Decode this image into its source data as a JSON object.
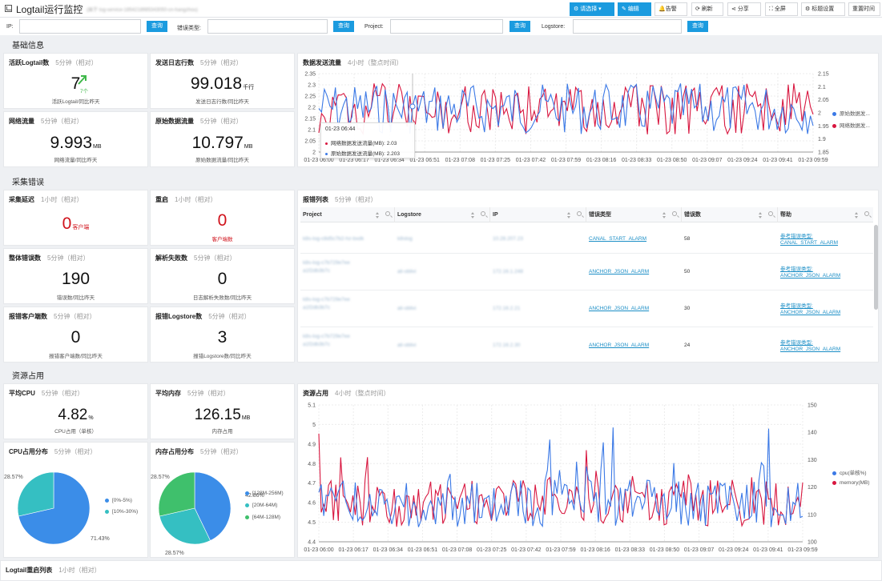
{
  "header": {
    "title": "Logtail运行监控",
    "subtitle": "(属于 log-service-1854218985343050-cn-hangzhou)",
    "buttons": [
      "请选择",
      "编辑",
      "告警",
      "刷新",
      "分享",
      "全屏",
      "标题设置",
      "重置时间"
    ]
  },
  "filters": {
    "labels": [
      "IP:",
      "错误类型:",
      "Project:",
      "Logstore:"
    ],
    "button": "查询"
  },
  "sections": [
    "基础信息",
    "采集错误",
    "资源占用"
  ],
  "cards": {
    "active": {
      "title": "活跃Logtail数",
      "meta": "5分钟（相对）",
      "value": "7",
      "trend": "7个",
      "caption": "活跃Logtail/同比昨天"
    },
    "lines": {
      "title": "发送日志行数",
      "meta": "5分钟（相对）",
      "value": "99.018",
      "unit": "千行",
      "caption": "发送日志行数/同比昨天"
    },
    "net": {
      "title": "网络流量",
      "meta": "5分钟（相对）",
      "value": "9.993",
      "unit": "MB",
      "caption": "网络流量/同比昨天"
    },
    "raw": {
      "title": "原始数据流量",
      "meta": "5分钟（相对）",
      "value": "10.797",
      "unit": "MB",
      "caption": "原始数据流量/同比昨天"
    },
    "delay": {
      "title": "采集延迟",
      "meta": "1小时（相对）",
      "value": "0",
      "unit": "客户端"
    },
    "restart": {
      "title": "重启",
      "meta": "1小时（相对）",
      "value": "0",
      "caption": "客户端数"
    },
    "errors": {
      "title": "整体错误数",
      "meta": "5分钟（相对）",
      "value": "190",
      "caption": "错误数/同比昨天"
    },
    "parse": {
      "title": "解析失败数",
      "meta": "5分钟（相对）",
      "value": "0",
      "caption": "日志解析失败数/同比昨天"
    },
    "errclients": {
      "title": "报错客户端数",
      "meta": "5分钟（相对）",
      "value": "0",
      "caption": "报错客户端数/同比昨天"
    },
    "errlogstore": {
      "title": "报错Logstore数",
      "meta": "5分钟（相对）",
      "value": "3",
      "caption": "报错Logstore数/同比昨天"
    },
    "cpu": {
      "title": "平均CPU",
      "meta": "5分钟（相对）",
      "value": "4.82",
      "unit": "%",
      "caption": "CPU占用（单核）"
    },
    "mem": {
      "title": "平均内存",
      "meta": "5分钟（相对）",
      "value": "126.15",
      "unit": "MB",
      "caption": "内存占用"
    },
    "restartlist": {
      "title": "Logtail重启列表",
      "meta": "1小时（相对）"
    }
  },
  "errtable": {
    "title": "报错列表",
    "meta": "5分钟（相对）",
    "columns": [
      "Project",
      "Logstore",
      "IP",
      "错误类型",
      "错误数",
      "帮助"
    ],
    "rows": [
      {
        "project": "k8s-log-c8d5c7b2-hz-bxdk",
        "logstore": "k8slog",
        "ip": "10.28.207.23",
        "type": "CANAL_START_ALARM",
        "count": "58",
        "help1": "参考错误类型:",
        "help2": "CANAL_START_ALARM"
      },
      {
        "project": "k8s-log-c7b729e7ee",
        "project2": "a1f2db3b7c",
        "logstore": "ali-oblivi",
        "ip": "172.16.1.248",
        "type": "ANCHOR_JSON_ALARM",
        "count": "50",
        "help1": "参考错误类型:",
        "help2": "ANCHOR_JSON_ALARM"
      },
      {
        "project": "k8s-log-c7b729e7ee",
        "project2": "a1f2db3b7c",
        "logstore": "ali-oblivi",
        "ip": "172.16.2.21",
        "type": "ANCHOR_JSON_ALARM",
        "count": "30",
        "help1": "参考错误类型:",
        "help2": "ANCHOR_JSON_ALARM"
      },
      {
        "project": "k8s-log-c7b729e7ee",
        "project2": "a1f2db3b7c",
        "logstore": "ali-oblivi",
        "ip": "172.16.2.30",
        "type": "ANCHOR_JSON_ALARM",
        "count": "24",
        "help1": "参考错误类型:",
        "help2": "ANCHOR_JSON_ALARM"
      }
    ]
  },
  "colors": {
    "blue": "#3b79e6",
    "red": "#d8163f",
    "teal": "#35bfc2",
    "green": "#3fc06c",
    "accent": "#1b9bdf"
  },
  "chart_data": [
    {
      "type": "line",
      "title": "数据发送流量",
      "meta": "4小时（整点时间）",
      "x": [
        "01-23 06:00",
        "01-23 06:17",
        "01-23 06:34",
        "01-23 06:51",
        "01-23 07:08",
        "01-23 07:25",
        "01-23 07:42",
        "01-23 07:59",
        "01-23 08:16",
        "01-23 08:33",
        "01-23 08:50",
        "01-23 09:07",
        "01-23 09:24",
        "01-23 09:41",
        "01-23 09:59"
      ],
      "ylim": [
        1.85,
        2.35
      ],
      "yticks": [
        "2",
        "2.05",
        "2.1",
        "2.15",
        "2.2",
        "2.25",
        "2.3",
        "2.35"
      ],
      "ylim_right": [
        1.85,
        2.15
      ],
      "yticks_right": [
        "1.85",
        "1.9",
        "1.95",
        "2",
        "2.05",
        "2.1",
        "2.15"
      ],
      "series": [
        {
          "name": "原始数据发...",
          "color": "#3b79e6"
        },
        {
          "name": "网络数据发...",
          "color": "#d8163f"
        }
      ],
      "legend": "right",
      "tooltip": {
        "time": "01-23 06:44",
        "lines": [
          "网络数据发送流量(MB): 2.03",
          "原始数据发送流量(MB): 2.203"
        ]
      }
    },
    {
      "type": "line",
      "title": "资源占用",
      "meta": "4小时（整点时间）",
      "x": [
        "01-23 06:00",
        "01-23 06:17",
        "01-23 06:34",
        "01-23 06:51",
        "01-23 07:08",
        "01-23 07:25",
        "01-23 07:42",
        "01-23 07:59",
        "01-23 08:16",
        "01-23 08:33",
        "01-23 08:50",
        "01-23 09:07",
        "01-23 09:24",
        "01-23 09:41",
        "01-23 09:59"
      ],
      "ylim": [
        4.4,
        5.1
      ],
      "yticks": [
        "4.4",
        "4.5",
        "4.6",
        "4.7",
        "4.8",
        "4.9",
        "5",
        "5.1"
      ],
      "ylim_right": [
        100,
        150
      ],
      "yticks_right": [
        "100",
        "110",
        "120",
        "130",
        "140",
        "150"
      ],
      "series": [
        {
          "name": "cpu(单核%)",
          "color": "#3b79e6"
        },
        {
          "name": "memory(MB)",
          "color": "#d8163f"
        }
      ],
      "legend": "right"
    },
    {
      "type": "pie",
      "title": "CPU占用分布",
      "meta": "5分钟（相对）",
      "labels": [
        "[0%-5%)",
        "[10%-30%)"
      ],
      "values": [
        71.43,
        28.57
      ],
      "slice_labels": [
        "71.43%",
        "28.57%"
      ],
      "colors": [
        "#3b8de8",
        "#35bfc2"
      ]
    },
    {
      "type": "pie",
      "title": "内存占用分布",
      "meta": "5分钟（相对）",
      "labels": [
        "[128M-256M)",
        "[20M-64M)",
        "[64M-128M)"
      ],
      "values": [
        42.86,
        28.57,
        28.57
      ],
      "slice_labels": [
        "42.86%",
        "28.57%",
        "28.57%"
      ],
      "colors": [
        "#3b8de8",
        "#35bfc2",
        "#3fc06c"
      ]
    }
  ]
}
